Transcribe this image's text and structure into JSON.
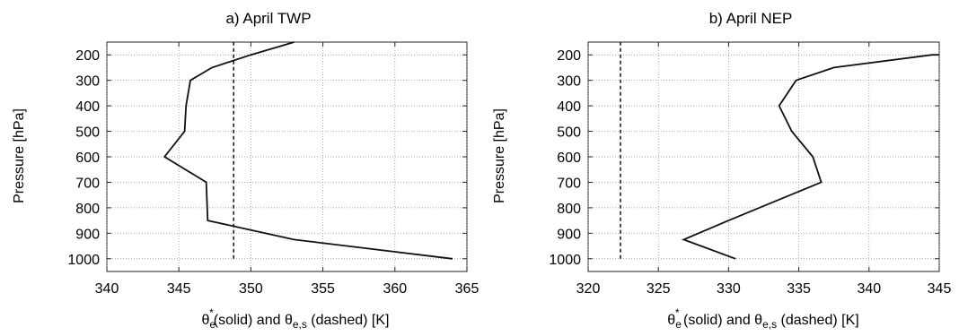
{
  "chart_data": [
    {
      "type": "line",
      "title": "a) April TWP",
      "ylabel": "Pressure [hPa]",
      "xlabel": {
        "theta": "θ",
        "sub_e": "e",
        "star": "*",
        "part1": "(solid) and ",
        "sub_es": "e,s",
        "part2": " (dashed) [K]"
      },
      "xlim": [
        340,
        365
      ],
      "ylim": [
        1050,
        150
      ],
      "y_inverted": true,
      "grid": true,
      "xticks": [
        340,
        345,
        350,
        355,
        360,
        365
      ],
      "yticks": [
        200,
        300,
        400,
        500,
        600,
        700,
        800,
        900,
        1000
      ],
      "series": [
        {
          "style": "solid",
          "points": [
            {
              "x": 364,
              "y": 1000
            },
            {
              "x": 353,
              "y": 925
            },
            {
              "x": 347,
              "y": 850
            },
            {
              "x": 346.9,
              "y": 700
            },
            {
              "x": 344,
              "y": 600
            },
            {
              "x": 345.4,
              "y": 500
            },
            {
              "x": 345.5,
              "y": 400
            },
            {
              "x": 345.8,
              "y": 300
            },
            {
              "x": 347.3,
              "y": 250
            },
            {
              "x": 350,
              "y": 200
            },
            {
              "x": 353,
              "y": 150
            }
          ]
        },
        {
          "style": "dashed",
          "points": [
            {
              "x": 348.8,
              "y": 1000
            },
            {
              "x": 348.8,
              "y": 150
            }
          ]
        }
      ]
    },
    {
      "type": "line",
      "title": "b) April NEP",
      "ylabel": "Pressure [hPa]",
      "xlabel": {
        "theta": "θ",
        "sub_e": "e",
        "star": "*",
        "part1": " (solid) and ",
        "sub_es": "e,s",
        "part2": " (dashed) [K]"
      },
      "xlim": [
        320,
        345
      ],
      "ylim": [
        1050,
        150
      ],
      "y_inverted": true,
      "grid": true,
      "xticks": [
        320,
        325,
        330,
        335,
        340,
        345
      ],
      "yticks": [
        200,
        300,
        400,
        500,
        600,
        700,
        800,
        900,
        1000
      ],
      "series": [
        {
          "style": "solid",
          "points": [
            {
              "x": 330.5,
              "y": 1000
            },
            {
              "x": 326.8,
              "y": 925
            },
            {
              "x": 330,
              "y": 850
            },
            {
              "x": 336.6,
              "y": 700
            },
            {
              "x": 336,
              "y": 600
            },
            {
              "x": 334.5,
              "y": 500
            },
            {
              "x": 333.6,
              "y": 400
            },
            {
              "x": 334.8,
              "y": 300
            },
            {
              "x": 337.5,
              "y": 250
            },
            {
              "x": 344.5,
              "y": 200
            },
            {
              "x": 345,
              "y": 200
            }
          ]
        },
        {
          "style": "dashed",
          "points": [
            {
              "x": 322.3,
              "y": 1000
            },
            {
              "x": 322.3,
              "y": 150
            }
          ]
        }
      ]
    }
  ]
}
